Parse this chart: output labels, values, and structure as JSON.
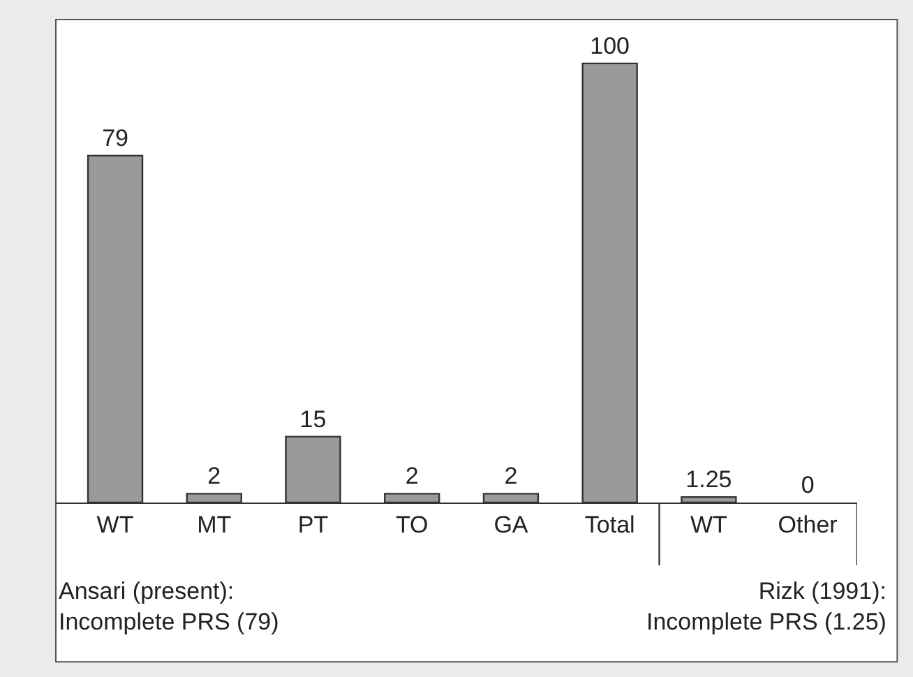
{
  "chart_data": {
    "type": "bar",
    "categories": [
      "WT",
      "MT",
      "PT",
      "TO",
      "GA",
      "Total",
      "WT",
      "Other"
    ],
    "values": [
      79,
      2,
      15,
      2,
      2,
      100,
      1.25,
      0
    ],
    "color": "#9a9a9a",
    "tick_labels": "x",
    "data_labels": true,
    "grid": false,
    "legend": false,
    "annotations": [
      "Ansari (present):\nIncomplete PRS (79)",
      "Rizk (1991):\nIncomplete PRS (1.25)"
    ]
  }
}
